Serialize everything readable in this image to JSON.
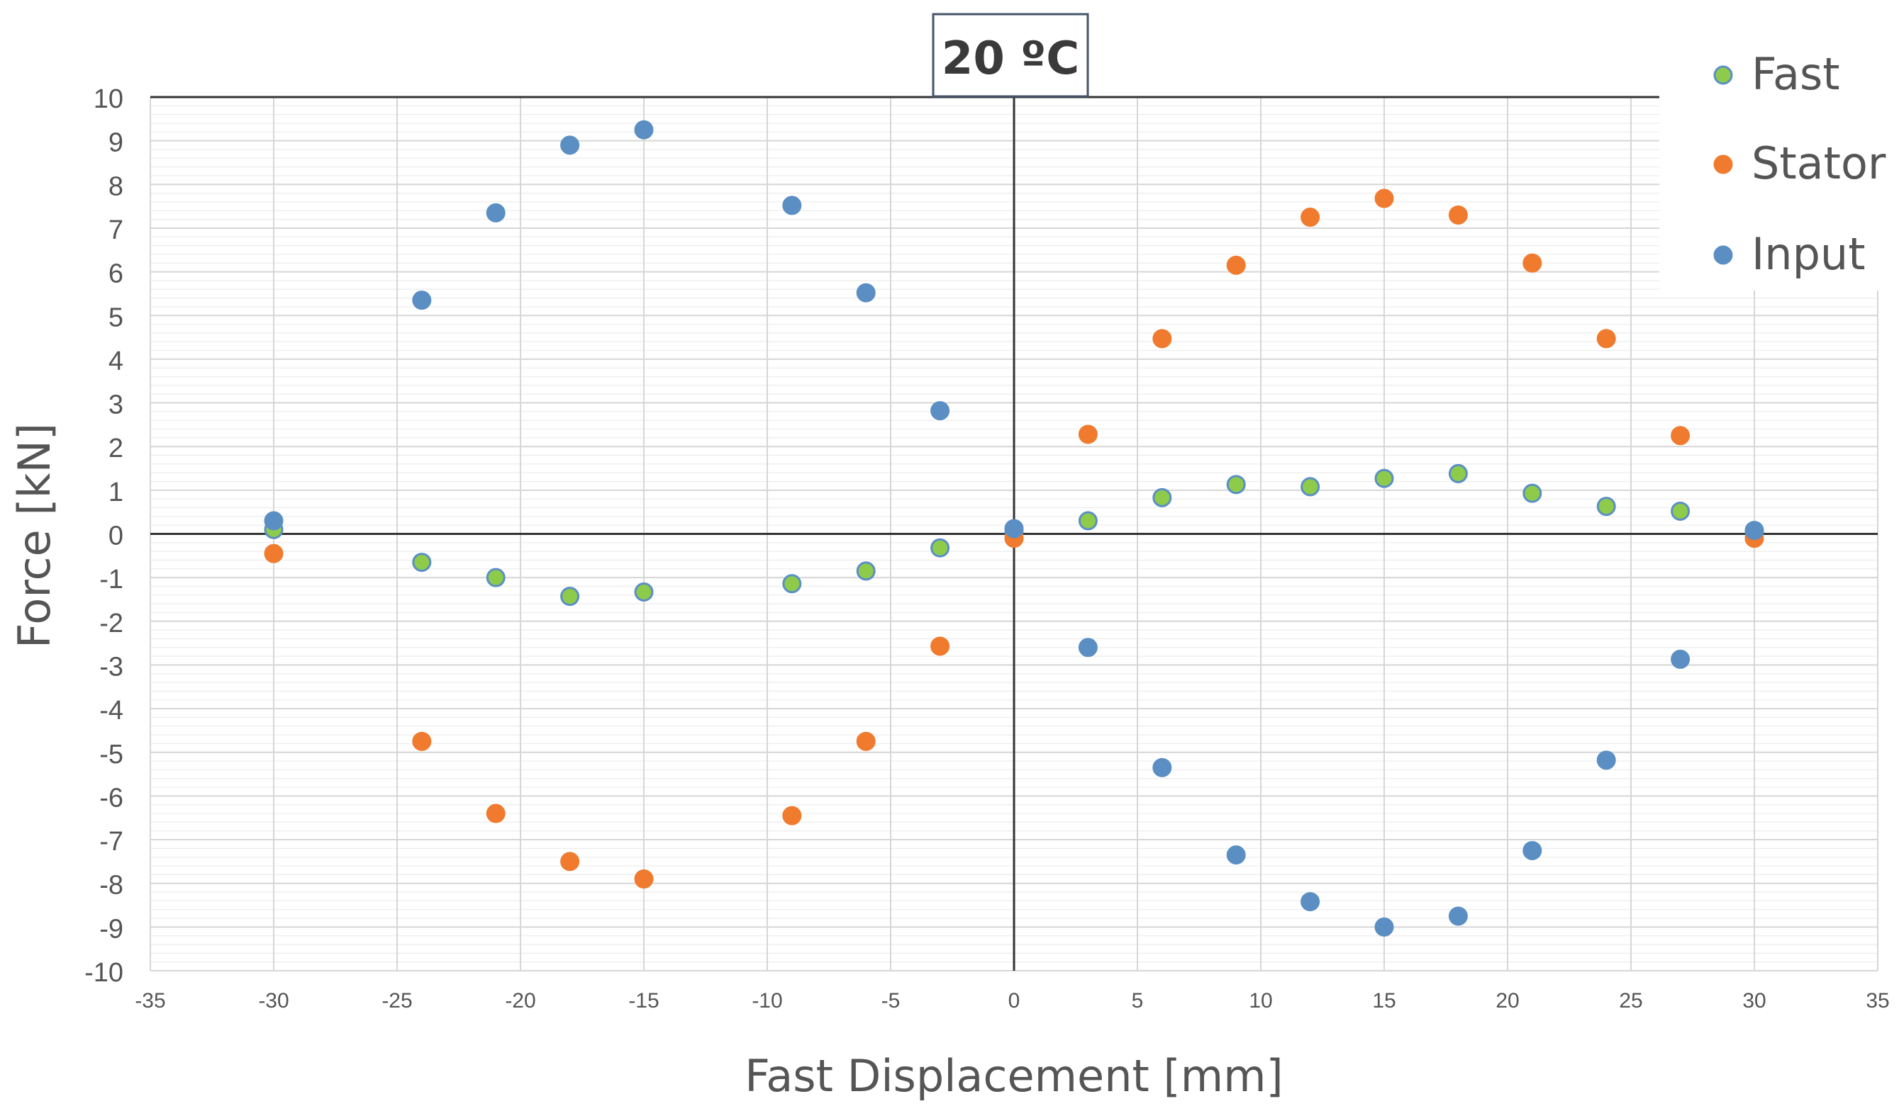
{
  "chart_data": {
    "type": "scatter",
    "title": "20 ºC",
    "xlabel": "Fast Displacement [mm]",
    "ylabel": "Force [kN]",
    "xlim": [
      -35,
      35
    ],
    "ylim": [
      -10,
      10
    ],
    "x_ticks": [
      -35,
      -30,
      -25,
      -20,
      -15,
      -10,
      -5,
      0,
      5,
      10,
      15,
      20,
      25,
      30,
      35
    ],
    "y_ticks": [
      -10,
      -9,
      -8,
      -7,
      -6,
      -5,
      -4,
      -3,
      -2,
      -1,
      0,
      1,
      2,
      3,
      4,
      5,
      6,
      7,
      8,
      9,
      10
    ],
    "grid": true,
    "legend_position": "top-right",
    "series": [
      {
        "name": "Fast",
        "color": "#8ecb4a",
        "points": [
          [
            -30,
            0.1
          ],
          [
            -24,
            -0.65
          ],
          [
            -21,
            -1.0
          ],
          [
            -18,
            -1.43
          ],
          [
            -15,
            -1.33
          ],
          [
            -9,
            -1.14
          ],
          [
            -6,
            -0.85
          ],
          [
            -3,
            -0.32
          ],
          [
            0,
            0.05
          ],
          [
            3,
            0.3
          ],
          [
            6,
            0.83
          ],
          [
            9,
            1.13
          ],
          [
            12,
            1.08
          ],
          [
            15,
            1.27
          ],
          [
            18,
            1.38
          ],
          [
            21,
            0.93
          ],
          [
            24,
            0.63
          ],
          [
            27,
            0.52
          ],
          [
            30,
            0.05
          ]
        ]
      },
      {
        "name": "Stator",
        "color": "#f07b2e",
        "points": [
          [
            -30,
            -0.45
          ],
          [
            -24,
            -4.75
          ],
          [
            -21,
            -6.4
          ],
          [
            -18,
            -7.5
          ],
          [
            -15,
            -7.9
          ],
          [
            -9,
            -6.45
          ],
          [
            -6,
            -4.75
          ],
          [
            -3,
            -2.57
          ],
          [
            0,
            -0.1
          ],
          [
            3,
            2.28
          ],
          [
            6,
            4.47
          ],
          [
            9,
            6.15
          ],
          [
            12,
            7.25
          ],
          [
            15,
            7.68
          ],
          [
            18,
            7.3
          ],
          [
            21,
            6.2
          ],
          [
            24,
            4.47
          ],
          [
            27,
            2.25
          ],
          [
            30,
            -0.1
          ]
        ]
      },
      {
        "name": "Input",
        "color": "#5b8fc4",
        "points": [
          [
            -30,
            0.3
          ],
          [
            -24,
            5.35
          ],
          [
            -21,
            7.35
          ],
          [
            -18,
            8.9
          ],
          [
            -15,
            9.25
          ],
          [
            -9,
            7.52
          ],
          [
            -6,
            5.52
          ],
          [
            -3,
            2.82
          ],
          [
            0,
            0.12
          ],
          [
            3,
            -2.6
          ],
          [
            6,
            -5.35
          ],
          [
            9,
            -7.35
          ],
          [
            12,
            -8.42
          ],
          [
            15,
            -9.0
          ],
          [
            18,
            -8.75
          ],
          [
            21,
            -7.25
          ],
          [
            24,
            -5.18
          ],
          [
            27,
            -2.87
          ],
          [
            30,
            0.08
          ]
        ]
      }
    ]
  }
}
